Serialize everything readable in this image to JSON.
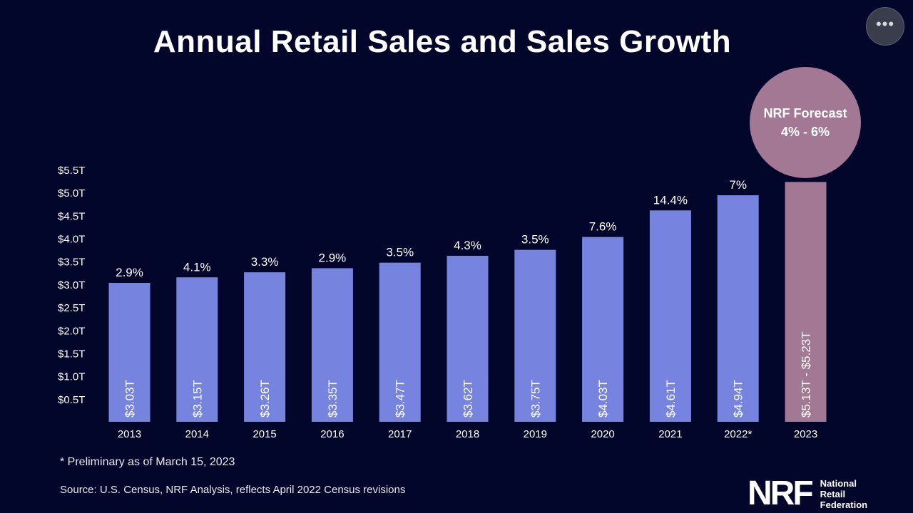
{
  "title": "Annual Retail Sales and Sales Growth",
  "more_button_glyph": "•••",
  "forecast": {
    "line1": "NRF Forecast",
    "line2": "4% - 6%"
  },
  "footnote": "* Preliminary as of March 15, 2023",
  "source": "Source: U.S. Census, NRF Analysis, reflects April 2022 Census revisions",
  "logo": {
    "mark": "NRF",
    "lines": [
      "National",
      "Retail",
      "Federation"
    ]
  },
  "colors": {
    "background": "#02062a",
    "bar": "#7684e0",
    "forecast": "#a37894",
    "text": "#ffffff"
  },
  "chart_data": {
    "type": "bar",
    "categories": [
      "2013",
      "2014",
      "2015",
      "2016",
      "2017",
      "2018",
      "2019",
      "2020",
      "2021",
      "2022*",
      "2023"
    ],
    "values": [
      3.03,
      3.15,
      3.26,
      3.35,
      3.47,
      3.62,
      3.75,
      4.03,
      4.61,
      4.94,
      5.23
    ],
    "value_labels": [
      "$3.03T",
      "$3.15T",
      "$3.26T",
      "$3.35T",
      "$3.47T",
      "$3.62T",
      "$3.75T",
      "$4.03T",
      "$4.61T",
      "$4.94T",
      "$5.13T - $5.23T"
    ],
    "growth_labels": [
      "2.9%",
      "4.1%",
      "3.3%",
      "2.9%",
      "3.5%",
      "4.3%",
      "3.5%",
      "7.6%",
      "14.4%",
      "7%",
      ""
    ],
    "forecast_range": [
      5.13,
      5.23
    ],
    "yticks": [
      0.5,
      1.0,
      1.5,
      2.0,
      2.5,
      3.0,
      3.5,
      4.0,
      4.5,
      5.0,
      5.5
    ],
    "ytick_labels": [
      "$0.5T",
      "$1.0T",
      "$1.5T",
      "$2.0T",
      "$2.5T",
      "$3.0T",
      "$3.5T",
      "$4.0T",
      "$4.5T",
      "$5.0T",
      "$5.5T"
    ],
    "title": "Annual Retail Sales and Sales Growth",
    "xlabel": "",
    "ylabel": "",
    "ylim": [
      0,
      5.5
    ],
    "grid": false,
    "legend": "none"
  }
}
